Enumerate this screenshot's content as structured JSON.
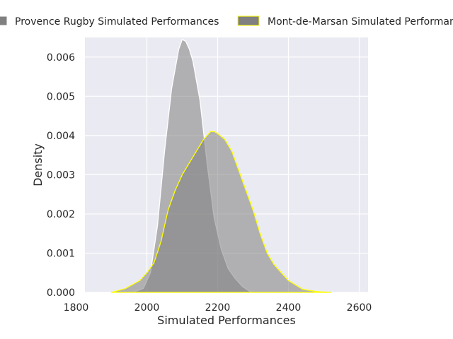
{
  "chart_data": {
    "type": "area",
    "xlabel": "Simulated Performances",
    "ylabel": "Density",
    "xlim": [
      1825,
      2625
    ],
    "ylim": [
      0,
      0.0065
    ],
    "xticks": [
      1800,
      2000,
      2200,
      2400,
      2600
    ],
    "xtick_labels": [
      "1800",
      "2000",
      "2200",
      "2400",
      "2600"
    ],
    "yticks": [
      0,
      0.001,
      0.002,
      0.003,
      0.004,
      0.005,
      0.006
    ],
    "ytick_labels": [
      "0.000",
      "0.001",
      "0.002",
      "0.003",
      "0.004",
      "0.005",
      "0.006"
    ],
    "grid": true,
    "legend_position": "top-center",
    "series": [
      {
        "name": "Provence Rugby Simulated Performances",
        "fill": "#808080",
        "edge": "#ffffff",
        "x": [
          1960,
          1990,
          2010,
          2030,
          2050,
          2070,
          2090,
          2100,
          2110,
          2120,
          2130,
          2150,
          2170,
          2190,
          2210,
          2230,
          2250,
          2270,
          2290,
          2300
        ],
        "y": [
          0,
          0.0001,
          0.0005,
          0.0017,
          0.0036,
          0.0052,
          0.0062,
          0.00645,
          0.0064,
          0.0062,
          0.0059,
          0.0049,
          0.0033,
          0.0019,
          0.0011,
          0.0006,
          0.00035,
          0.00015,
          3e-05,
          0
        ]
      },
      {
        "name": "Mont-de-Marsan Simulated Performances",
        "fill": "#808080",
        "edge": "#ffff00",
        "x": [
          1900,
          1940,
          1980,
          2000,
          2020,
          2040,
          2060,
          2080,
          2100,
          2120,
          2140,
          2160,
          2180,
          2190,
          2200,
          2220,
          2240,
          2260,
          2280,
          2300,
          2320,
          2340,
          2360,
          2380,
          2400,
          2440,
          2480,
          2520
        ],
        "y": [
          0,
          0.0001,
          0.0003,
          0.0005,
          0.00075,
          0.0013,
          0.0021,
          0.0026,
          0.003,
          0.0033,
          0.0036,
          0.0039,
          0.0041,
          0.0041,
          0.00405,
          0.0039,
          0.0036,
          0.0031,
          0.0026,
          0.0021,
          0.0015,
          0.001,
          0.0007,
          0.0005,
          0.0003,
          8e-05,
          2e-05,
          0
        ]
      }
    ]
  }
}
